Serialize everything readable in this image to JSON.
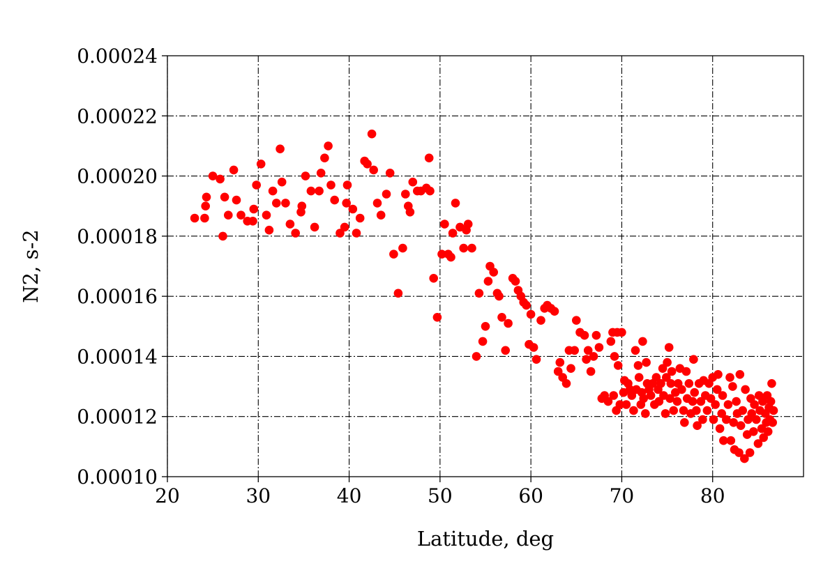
{
  "chart_data": {
    "type": "scatter",
    "title": "",
    "xlabel": "Latitude, deg",
    "ylabel": "N2, s-2",
    "xlim": [
      20,
      90
    ],
    "ylim": [
      0.0001,
      0.00024
    ],
    "x_ticks": [
      20,
      30,
      40,
      50,
      60,
      70,
      80
    ],
    "x_tick_labels": [
      "20",
      "30",
      "40",
      "50",
      "60",
      "70",
      "80"
    ],
    "y_ticks": [
      0.0001,
      0.00012,
      0.00014,
      0.00016,
      0.00018,
      0.0002,
      0.00022,
      0.00024
    ],
    "y_tick_labels": [
      "0.00010",
      "0.00012",
      "0.00014",
      "0.00016",
      "0.00018",
      "0.00020",
      "0.00022",
      "0.00024"
    ],
    "grid": true,
    "grid_style": "dash-dot",
    "legend": "none",
    "marker_color": "#ff0000",
    "series": [
      {
        "points": [
          [
            23.0,
            0.000186
          ],
          [
            24.1,
            0.000186
          ],
          [
            24.2,
            0.00019
          ],
          [
            24.3,
            0.000193
          ],
          [
            25.0,
            0.0002
          ],
          [
            25.8,
            0.000199
          ],
          [
            26.1,
            0.00018
          ],
          [
            26.3,
            0.000193
          ],
          [
            26.7,
            0.000187
          ],
          [
            27.3,
            0.000202
          ],
          [
            27.6,
            0.000192
          ],
          [
            28.1,
            0.000187
          ],
          [
            28.8,
            0.000185
          ],
          [
            29.4,
            0.000185
          ],
          [
            29.5,
            0.000189
          ],
          [
            29.8,
            0.000197
          ],
          [
            30.3,
            0.000204
          ],
          [
            30.9,
            0.000187
          ],
          [
            31.2,
            0.000182
          ],
          [
            31.6,
            0.000195
          ],
          [
            32.0,
            0.000191
          ],
          [
            32.4,
            0.000209
          ],
          [
            32.6,
            0.000198
          ],
          [
            33.0,
            0.000191
          ],
          [
            33.5,
            0.000184
          ],
          [
            34.1,
            0.000181
          ],
          [
            34.7,
            0.000188
          ],
          [
            34.8,
            0.00019
          ],
          [
            35.2,
            0.0002
          ],
          [
            35.8,
            0.000195
          ],
          [
            36.2,
            0.000183
          ],
          [
            36.7,
            0.000195
          ],
          [
            36.9,
            0.000201
          ],
          [
            37.3,
            0.000206
          ],
          [
            37.7,
            0.00021
          ],
          [
            38.0,
            0.000197
          ],
          [
            38.4,
            0.000192
          ],
          [
            39.0,
            0.000181
          ],
          [
            39.5,
            0.000183
          ],
          [
            39.7,
            0.000191
          ],
          [
            39.8,
            0.000197
          ],
          [
            40.4,
            0.000189
          ],
          [
            40.8,
            0.000181
          ],
          [
            41.2,
            0.000186
          ],
          [
            41.7,
            0.000205
          ],
          [
            42.0,
            0.000204
          ],
          [
            42.5,
            0.000214
          ],
          [
            42.7,
            0.000202
          ],
          [
            43.1,
            0.000191
          ],
          [
            43.5,
            0.000187
          ],
          [
            44.1,
            0.000194
          ],
          [
            44.5,
            0.000201
          ],
          [
            44.9,
            0.000174
          ],
          [
            45.4,
            0.000161
          ],
          [
            45.9,
            0.000176
          ],
          [
            46.2,
            0.000194
          ],
          [
            46.5,
            0.00019
          ],
          [
            46.7,
            0.000188
          ],
          [
            47.0,
            0.000198
          ],
          [
            47.5,
            0.000195
          ],
          [
            47.9,
            0.000195
          ],
          [
            48.5,
            0.000196
          ],
          [
            48.8,
            0.000206
          ],
          [
            48.9,
            0.000195
          ],
          [
            49.3,
            0.000166
          ],
          [
            49.7,
            0.000153
          ],
          [
            50.2,
            0.000174
          ],
          [
            50.5,
            0.000184
          ],
          [
            50.9,
            0.000174
          ],
          [
            51.2,
            0.000173
          ],
          [
            51.4,
            0.000181
          ],
          [
            51.7,
            0.000191
          ],
          [
            52.2,
            0.000183
          ],
          [
            52.6,
            0.000176
          ],
          [
            52.9,
            0.000182
          ],
          [
            53.1,
            0.000184
          ],
          [
            53.5,
            0.000176
          ],
          [
            54.0,
            0.00014
          ],
          [
            54.3,
            0.000161
          ],
          [
            54.7,
            0.000145
          ],
          [
            55.0,
            0.00015
          ],
          [
            55.3,
            0.000165
          ],
          [
            55.5,
            0.00017
          ],
          [
            55.9,
            0.000168
          ],
          [
            56.3,
            0.000161
          ],
          [
            56.5,
            0.00016
          ],
          [
            56.8,
            0.000153
          ],
          [
            57.2,
            0.000142
          ],
          [
            57.5,
            0.000151
          ],
          [
            58.0,
            0.000166
          ],
          [
            58.3,
            0.000165
          ],
          [
            58.6,
            0.000162
          ],
          [
            58.9,
            0.00016
          ],
          [
            59.2,
            0.000158
          ],
          [
            59.5,
            0.000157
          ],
          [
            59.8,
            0.000144
          ],
          [
            60.0,
            0.000154
          ],
          [
            60.3,
            0.000143
          ],
          [
            60.6,
            0.000139
          ],
          [
            61.1,
            0.000152
          ],
          [
            61.5,
            0.000156
          ],
          [
            61.8,
            0.000157
          ],
          [
            62.2,
            0.000156
          ],
          [
            62.6,
            0.000155
          ],
          [
            63.0,
            0.000135
          ],
          [
            63.2,
            0.000138
          ],
          [
            63.5,
            0.000133
          ],
          [
            63.9,
            0.000131
          ],
          [
            64.2,
            0.000142
          ],
          [
            64.4,
            0.000136
          ],
          [
            64.8,
            0.000142
          ],
          [
            65.0,
            0.000152
          ],
          [
            65.4,
            0.000148
          ],
          [
            65.9,
            0.000147
          ],
          [
            66.1,
            0.000139
          ],
          [
            66.3,
            0.000142
          ],
          [
            66.6,
            0.000135
          ],
          [
            66.9,
            0.00014
          ],
          [
            67.2,
            0.000147
          ],
          [
            67.5,
            0.000143
          ],
          [
            67.8,
            0.000126
          ],
          [
            68.1,
            0.000127
          ],
          [
            68.5,
            0.000125
          ],
          [
            68.8,
            0.000145
          ],
          [
            69.0,
            0.000148
          ],
          [
            69.1,
            0.000127
          ],
          [
            69.2,
            0.00014
          ],
          [
            69.4,
            0.000122
          ],
          [
            69.5,
            0.000148
          ],
          [
            69.6,
            0.000137
          ],
          [
            69.8,
            0.000124
          ],
          [
            70.0,
            0.000148
          ],
          [
            70.2,
            0.000128
          ],
          [
            70.3,
            0.000132
          ],
          [
            70.5,
            0.000124
          ],
          [
            70.7,
            0.000131
          ],
          [
            70.9,
            0.000129
          ],
          [
            71.1,
            0.000127
          ],
          [
            71.3,
            0.000122
          ],
          [
            71.5,
            0.000142
          ],
          [
            71.6,
            0.000129
          ],
          [
            71.8,
            0.000137
          ],
          [
            71.9,
            0.000133
          ],
          [
            72.1,
            0.000124
          ],
          [
            72.2,
            0.000128
          ],
          [
            72.3,
            0.000145
          ],
          [
            72.4,
            0.000126
          ],
          [
            72.6,
            0.000121
          ],
          [
            72.7,
            0.000138
          ],
          [
            72.8,
            0.000131
          ],
          [
            73.0,
            0.000129
          ],
          [
            73.2,
            0.000127
          ],
          [
            73.4,
            0.000131
          ],
          [
            73.6,
            0.000124
          ],
          [
            73.8,
            0.000133
          ],
          [
            74.0,
            0.000129
          ],
          [
            74.1,
            0.000125
          ],
          [
            74.3,
            0.000131
          ],
          [
            74.5,
            0.000136
          ],
          [
            74.6,
            0.000127
          ],
          [
            74.8,
            0.000121
          ],
          [
            74.9,
            0.000133
          ],
          [
            75.0,
            0.000138
          ],
          [
            75.2,
            0.000143
          ],
          [
            75.3,
            0.000126
          ],
          [
            75.4,
            0.000131
          ],
          [
            75.5,
            0.000135
          ],
          [
            75.7,
            0.000122
          ],
          [
            75.9,
            0.000128
          ],
          [
            76.1,
            0.000125
          ],
          [
            76.2,
            0.000131
          ],
          [
            76.4,
            0.000136
          ],
          [
            76.6,
            0.000129
          ],
          [
            76.8,
            0.000122
          ],
          [
            76.9,
            0.000118
          ],
          [
            77.1,
            0.000135
          ],
          [
            77.2,
            0.000126
          ],
          [
            77.4,
            0.000131
          ],
          [
            77.6,
            0.000121
          ],
          [
            77.8,
            0.000125
          ],
          [
            77.9,
            0.000139
          ],
          [
            78.0,
            0.000128
          ],
          [
            78.2,
            0.000122
          ],
          [
            78.3,
            0.000117
          ],
          [
            78.5,
            0.000131
          ],
          [
            78.7,
            0.000125
          ],
          [
            78.9,
            0.000119
          ],
          [
            79.0,
            0.000132
          ],
          [
            79.2,
            0.000127
          ],
          [
            79.4,
            0.000122
          ],
          [
            79.6,
            0.000131
          ],
          [
            79.8,
            0.000126
          ],
          [
            80.0,
            0.000133
          ],
          [
            80.1,
            0.000119
          ],
          [
            80.3,
            0.000124
          ],
          [
            80.5,
            0.000129
          ],
          [
            80.6,
            0.000134
          ],
          [
            80.8,
            0.000116
          ],
          [
            81.0,
            0.000121
          ],
          [
            81.1,
            0.000127
          ],
          [
            81.2,
            0.000112
          ],
          [
            81.5,
            0.000119
          ],
          [
            81.7,
            0.000124
          ],
          [
            81.9,
            0.000133
          ],
          [
            82.0,
            0.000112
          ],
          [
            82.2,
            0.00013
          ],
          [
            82.3,
            0.000118
          ],
          [
            82.4,
            0.000109
          ],
          [
            82.6,
            0.000125
          ],
          [
            82.7,
            0.000121
          ],
          [
            82.9,
            0.000108
          ],
          [
            83.0,
            0.000134
          ],
          [
            83.1,
            0.000117
          ],
          [
            83.3,
            0.000122
          ],
          [
            83.5,
            0.000106
          ],
          [
            83.6,
            0.000129
          ],
          [
            83.8,
            0.000114
          ],
          [
            83.9,
            0.000119
          ],
          [
            84.1,
            0.000108
          ],
          [
            84.2,
            0.000126
          ],
          [
            84.3,
            0.000121
          ],
          [
            84.5,
            0.000115
          ],
          [
            84.6,
            0.000124
          ],
          [
            84.8,
            0.000119
          ],
          [
            85.0,
            0.000111
          ],
          [
            85.1,
            0.000127
          ],
          [
            85.2,
            0.000122
          ],
          [
            85.4,
            0.000116
          ],
          [
            85.5,
            0.000125
          ],
          [
            85.6,
            0.000113
          ],
          [
            85.8,
            0.000121
          ],
          [
            85.9,
            0.000118
          ],
          [
            86.0,
            0.000127
          ],
          [
            86.1,
            0.000115
          ],
          [
            86.2,
            0.000123
          ],
          [
            86.3,
            0.000119
          ],
          [
            86.4,
            0.000125
          ],
          [
            86.5,
            0.000131
          ],
          [
            86.6,
            0.000118
          ],
          [
            86.7,
            0.000122
          ]
        ]
      }
    ]
  }
}
